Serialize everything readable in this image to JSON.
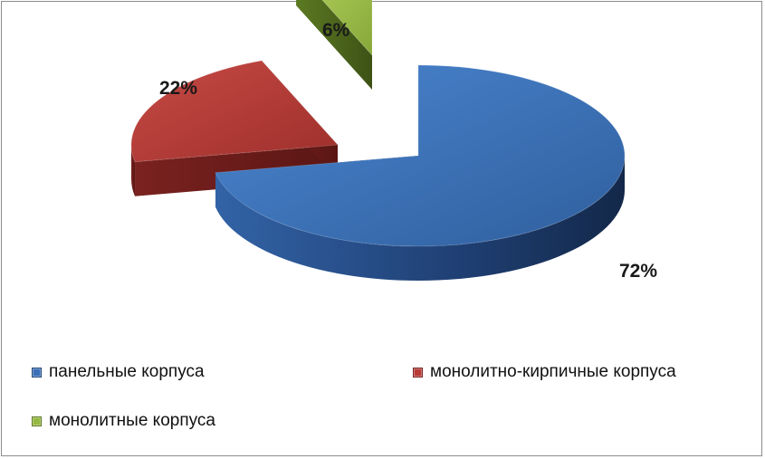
{
  "chart_data": {
    "type": "pie",
    "variant": "3d-exploded",
    "title": "",
    "slices": [
      {
        "name": "панельные корпуса",
        "value": 72,
        "label": "72%",
        "color": "#3a6fb8",
        "side_color": "#1f3f73"
      },
      {
        "name": "монолитно-кирпичные корпуса",
        "value": 22,
        "label": "22%",
        "color": "#b83a36",
        "side_color": "#6b1c1a"
      },
      {
        "name": "монолитные корпуса",
        "value": 6,
        "label": "6%",
        "color": "#94b840",
        "side_color": "#4e6a1d"
      }
    ],
    "legend_position": "bottom"
  }
}
